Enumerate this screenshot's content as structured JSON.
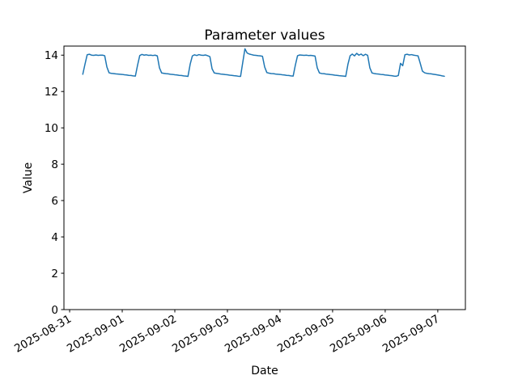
{
  "figure": {
    "background_color": "#ffffff",
    "frame_color": "#000000"
  },
  "chart_data": {
    "type": "line",
    "title": "Parameter values",
    "xlabel": "Date",
    "ylabel": "Value",
    "grid": false,
    "legend": "none",
    "line_color": "#1f77b4",
    "line_width": 1.5,
    "ylim": [
      0,
      14.5
    ],
    "y_ticks": [
      0,
      2,
      4,
      6,
      8,
      10,
      12,
      14
    ],
    "x_unit": "hours since 2025-08-31 06:00",
    "x_interval_hours": 1,
    "xlim_hours": [
      -8.6,
      174.6
    ],
    "x_tick_hours": [
      -6,
      18,
      42,
      66,
      90,
      114,
      138,
      162
    ],
    "x_tick_labels": [
      "2025-08-31",
      "2025-09-01",
      "2025-09-02",
      "2025-09-03",
      "2025-09-04",
      "2025-09-05",
      "2025-09-06",
      "2025-09-07"
    ],
    "x_tick_rotation_deg": 30,
    "values": [
      12.95,
      13.5,
      14.02,
      14.05,
      14.0,
      13.99,
      14.01,
      13.99,
      14.0,
      14.0,
      13.97,
      13.35,
      13.03,
      13.0,
      12.99,
      12.97,
      12.96,
      12.95,
      12.94,
      12.92,
      12.91,
      12.89,
      12.88,
      12.86,
      12.85,
      13.45,
      13.98,
      14.04,
      14.0,
      14.02,
      13.99,
      14.0,
      13.98,
      14.0,
      13.96,
      13.3,
      13.02,
      13.0,
      12.98,
      12.97,
      12.95,
      12.94,
      12.92,
      12.91,
      12.89,
      12.88,
      12.86,
      12.85,
      12.83,
      13.5,
      13.96,
      14.02,
      13.98,
      14.03,
      14.0,
      13.99,
      14.01,
      13.97,
      13.92,
      13.25,
      13.02,
      13.0,
      12.98,
      12.96,
      12.95,
      12.93,
      12.92,
      12.9,
      12.89,
      12.87,
      12.86,
      12.84,
      12.83,
      13.6,
      14.35,
      14.12,
      14.06,
      14.03,
      14.0,
      13.99,
      13.97,
      13.96,
      13.94,
      13.35,
      13.04,
      13.01,
      12.99,
      12.98,
      12.96,
      12.95,
      12.94,
      12.92,
      12.91,
      12.89,
      12.88,
      12.86,
      12.85,
      13.45,
      13.97,
      14.01,
      14.0,
      13.99,
      14.0,
      13.98,
      13.99,
      13.97,
      13.95,
      13.3,
      13.02,
      12.99,
      12.98,
      12.96,
      12.95,
      12.93,
      12.92,
      12.9,
      12.89,
      12.87,
      12.86,
      12.85,
      12.83,
      13.5,
      13.97,
      14.06,
      13.96,
      14.1,
      14.0,
      14.06,
      13.97,
      14.05,
      13.99,
      13.3,
      13.02,
      12.99,
      12.97,
      12.96,
      12.94,
      12.93,
      12.91,
      12.9,
      12.88,
      12.87,
      12.85,
      12.84,
      12.88,
      13.55,
      13.42,
      14.02,
      14.05,
      14.01,
      14.03,
      14.0,
      13.98,
      13.96,
      13.55,
      13.12,
      13.03,
      13.0,
      12.98,
      12.97,
      12.95,
      12.93,
      12.91,
      12.89,
      12.86,
      12.84
    ]
  }
}
